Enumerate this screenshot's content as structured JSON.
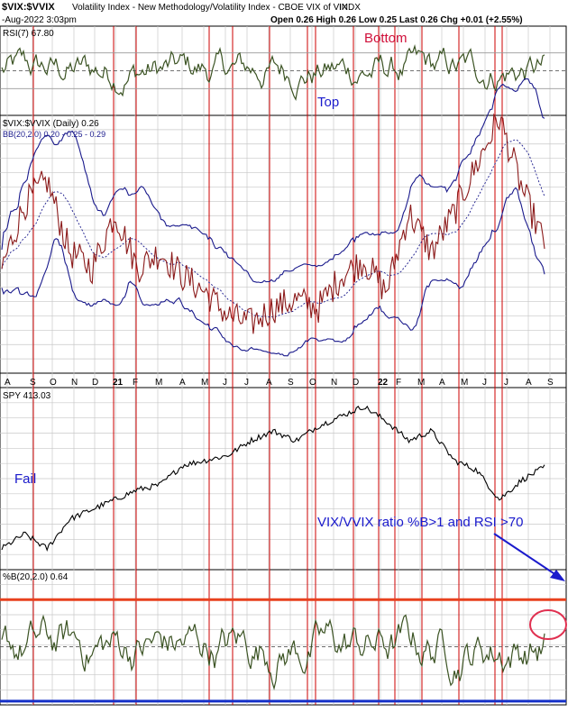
{
  "header": {
    "symbol": "$VIX:$VVIX",
    "description": "Volatility Index - New Methodology/Volatility Index - CBOE VIX of VIX",
    "exchange": "INDX",
    "date": "-Aug-2022 3:03pm",
    "quote": "Open 0.26  High 0.26  Low 0.25  Last 0.26  Chg +0.01 (+2.55%)"
  },
  "colors": {
    "background": "#ffffff",
    "grid": "#c8c8c8",
    "red_marker": "#cc0000",
    "price_line": "#8b1a1a",
    "bands": "#1a1a8c",
    "oscillator": "#3b5323",
    "threshold_line": "#e8411e",
    "bottom_line": "#1530c8",
    "annotation_blue": "#1a1acc",
    "annotation_red": "#d0103a",
    "annotation_circle": "#e03050"
  },
  "months": [
    "A",
    "S",
    "O",
    "N",
    "D",
    "21",
    "F",
    "M",
    "A",
    "M",
    "J",
    "J",
    "A",
    "S",
    "O",
    "N",
    "D",
    "22",
    "F",
    "M",
    "A",
    "M",
    "J",
    "J",
    "A",
    "S"
  ],
  "chart_data": [
    {
      "type": "line",
      "title": "RSI(7) 67.80",
      "ylim": [
        0,
        100
      ],
      "reference_lines": [
        30,
        50,
        70
      ],
      "last_value": 67.8,
      "annotations": [
        "Bottom",
        "Top"
      ]
    },
    {
      "type": "line",
      "title": "$VIX:$VVIX (Daily) 0.26",
      "legend": "BB(20,2.0) 0.20 - 0.25 - 0.29",
      "ylim": [
        0.18,
        0.34
      ],
      "last_value": 0.26,
      "bollinger": {
        "lower": 0.2,
        "middle": 0.25,
        "upper": 0.29
      },
      "series": [
        {
          "name": "$VIX:$VVIX",
          "x": [
            "2020-08",
            "2020-09",
            "2020-10",
            "2020-11",
            "2020-12",
            "2021-01",
            "2021-02",
            "2021-03",
            "2021-04",
            "2021-05",
            "2021-06",
            "2021-07",
            "2021-08",
            "2021-09",
            "2021-10",
            "2021-11",
            "2021-12",
            "2022-01",
            "2022-02",
            "2022-03",
            "2022-04",
            "2022-05",
            "2022-06",
            "2022-07",
            "2022-08"
          ],
          "values": [
            0.245,
            0.285,
            0.3,
            0.255,
            0.245,
            0.28,
            0.245,
            0.255,
            0.24,
            0.23,
            0.215,
            0.21,
            0.22,
            0.225,
            0.22,
            0.24,
            0.25,
            0.23,
            0.28,
            0.255,
            0.28,
            0.31,
            0.34,
            0.295,
            0.26
          ]
        }
      ]
    },
    {
      "type": "line",
      "title": "SPY 413.03",
      "last_value": 413.03,
      "annotations": [
        "Fail",
        "VIX/VVIX ratio %B>1 and RSI >70"
      ],
      "series": [
        {
          "name": "SPY",
          "x": [
            "2020-08",
            "2020-09",
            "2020-10",
            "2020-11",
            "2020-12",
            "2021-01",
            "2021-02",
            "2021-03",
            "2021-04",
            "2021-05",
            "2021-06",
            "2021-07",
            "2021-08",
            "2021-09",
            "2021-10",
            "2021-11",
            "2021-12",
            "2022-01",
            "2022-02",
            "2022-03",
            "2022-04",
            "2022-05",
            "2022-06",
            "2022-07",
            "2022-08"
          ],
          "values": [
            330,
            345,
            330,
            360,
            370,
            380,
            390,
            395,
            415,
            420,
            425,
            440,
            450,
            440,
            455,
            465,
            475,
            460,
            440,
            450,
            420,
            410,
            380,
            400,
            413
          ]
        }
      ]
    },
    {
      "type": "line",
      "title": "%B(20,2.0) 0.64",
      "last_value": 0.64,
      "ylim": [
        -0.1,
        1.3
      ],
      "reference_lines": [
        0,
        0.5,
        1
      ],
      "annotations": [
        "circle at latest reading"
      ]
    }
  ],
  "texts": {
    "rsi_title": "RSI(7) 67.80",
    "vix_title": "$VIX:$VVIX (Daily) 0.26",
    "vix_legend": "BB(20,2.0) 0.20 - 0.25 - 0.29",
    "spy_title": "SPY 413.03",
    "pb_title": "%B(20,2.0) 0.64",
    "bottom": "Bottom",
    "top": "Top",
    "fail": "Fail",
    "ratio_note": "VIX/VVIX ratio %B>1 and RSI >70"
  }
}
